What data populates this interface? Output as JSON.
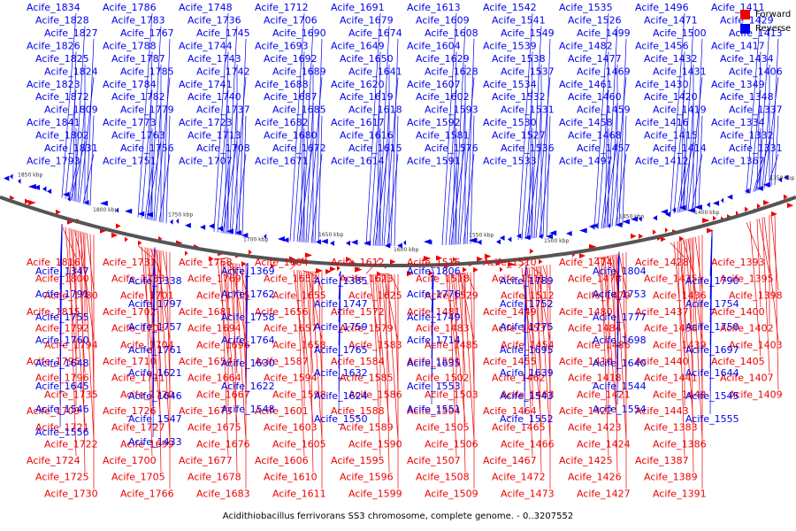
{
  "legend": [
    {
      "label": "Forward",
      "color": "#ee0000"
    },
    {
      "label": "Reverse",
      "color": "#0000ee"
    }
  ],
  "caption": "Acidithiobacillus ferrivorans SS3 chromosome, complete genome. - 0..3207552",
  "colors": {
    "forward": "#ee0000",
    "reverse": "#0000ee",
    "backbone": "#555555"
  },
  "ticks": [
    "1850 kbp",
    "1800 kbp",
    "1750 kbp",
    "1700 kbp",
    "1650 kbp",
    "1600 kbp",
    "1550 kbp",
    "1500 kbp",
    "1450 kbp",
    "1400 kbp",
    "1350 kbp"
  ],
  "reverse_labels": [
    "Acife_1834",
    "Acife_1828",
    "Acife_1827",
    "Acife_1826",
    "Acife_1825",
    "Acife_1824",
    "Acife_1823",
    "Acife_1872",
    "Acife_1809",
    "Acife_1841",
    "Acife_1802",
    "Acife_1831",
    "Acife_1793",
    "Acife_1786",
    "Acife_1783",
    "Acife_1767",
    "Acife_1788",
    "Acife_1787",
    "Acife_1785",
    "Acife_1784",
    "Acife_1782",
    "Acife_1779",
    "Acife_1773",
    "Acife_1763",
    "Acife_1756",
    "Acife_1751",
    "Acife_1748",
    "Acife_1736",
    "Acife_1745",
    "Acife_1744",
    "Acife_1743",
    "Acife_1742",
    "Acife_1741",
    "Acife_1740",
    "Acife_1737",
    "Acife_1723",
    "Acife_1713",
    "Acife_1708",
    "Acife_1707",
    "Acife_1712",
    "Acife_1706",
    "Acife_1690",
    "Acife_1693",
    "Acife_1692",
    "Acife_1689",
    "Acife_1688",
    "Acife_1687",
    "Acife_1685",
    "Acife_1682",
    "Acife_1680",
    "Acife_1672",
    "Acife_1671",
    "Acife_1691",
    "Acife_1679",
    "Acife_1674",
    "Acife_1649",
    "Acife_1650",
    "Acife_1641",
    "Acife_1620",
    "Acife_1619",
    "Acife_1618",
    "Acife_1617",
    "Acife_1616",
    "Acife_1615",
    "Acife_1614",
    "Acife_1613",
    "Acife_1609",
    "Acife_1608",
    "Acife_1604",
    "Acife_1629",
    "Acife_1628",
    "Acife_1607",
    "Acife_1602",
    "Acife_1593",
    "Acife_1592",
    "Acife_1581",
    "Acife_1576",
    "Acife_1591",
    "Acife_1542",
    "Acife_1541",
    "Acife_1549",
    "Acife_1539",
    "Acife_1538",
    "Acife_1537",
    "Acife_1534",
    "Acife_1532",
    "Acife_1531",
    "Acife_1530",
    "Acife_1527",
    "Acife_1536",
    "Acife_1533",
    "Acife_1535",
    "Acife_1526",
    "Acife_1499",
    "Acife_1482",
    "Acife_1477",
    "Acife_1469",
    "Acife_1461",
    "Acife_1460",
    "Acife_1459",
    "Acife_1458",
    "Acife_1468",
    "Acife_1457",
    "Acife_1497",
    "Acife_1496",
    "Acife_1471",
    "Acife_1500",
    "Acife_1456",
    "Acife_1432",
    "Acife_1431",
    "Acife_1430",
    "Acife_1420",
    "Acife_1419",
    "Acife_1416",
    "Acife_1415",
    "Acife_1414",
    "Acife_1412",
    "Acife_1411",
    "Acife_1429",
    "Acife_1413",
    "Acife_1417",
    "Acife_1434",
    "Acife_1406",
    "Acife_1349",
    "Acife_1348",
    "Acife_1337",
    "Acife_1334",
    "Acife_1332",
    "Acife_1331",
    "Acife_1367",
    "Acife_1347",
    "Acife_1338",
    "Acife_1369",
    "Acife_1385",
    "Acife_1806",
    "Acife_1789",
    "Acife_1804",
    "Acife_1790",
    "Acife_1791",
    "Acife_1797",
    "Acife_1762",
    "Acife_1747",
    "Acife_1776",
    "Acife_1752",
    "Acife_1753",
    "Acife_1754",
    "Acife_1755",
    "Acife_1757",
    "Acife_1758",
    "Acife_1759",
    "Acife_1749",
    "Acife_1775",
    "Acife_1777",
    "Acife_1750",
    "Acife_1760",
    "Acife_1761",
    "Acife_1764",
    "Acife_1765",
    "Acife_1714",
    "Acife_1695",
    "Acife_1698",
    "Acife_1697",
    "Acife_1648",
    "Acife_1621",
    "Acife_1630",
    "Acife_1632",
    "Acife_1635",
    "Acife_1639",
    "Acife_1640",
    "Acife_1644",
    "Acife_1645",
    "Acife_1646",
    "Acife_1622",
    "Acife_1624",
    "Acife_1553",
    "Acife_1543",
    "Acife_1544",
    "Acife_1545",
    "Acife_1546",
    "Acife_1547",
    "Acife_1548",
    "Acife_1550",
    "Acife_1551",
    "Acife_1552",
    "Acife_1554",
    "Acife_1555",
    "Acife_1556",
    "Acife_1433"
  ],
  "forward_labels": [
    "Acife_1816",
    "Acife_1800",
    "Acife_1780",
    "Acife_1815",
    "Acife_1792",
    "Acife_1794",
    "Acife_1795",
    "Acife_1796",
    "Acife_1735",
    "Acife_1709",
    "Acife_1721",
    "Acife_1722",
    "Acife_1724",
    "Acife_1725",
    "Acife_1730",
    "Acife_1731",
    "Acife_1733",
    "Acife_1701",
    "Acife_1702",
    "Acife_1703",
    "Acife_1704",
    "Acife_1710",
    "Acife_1711",
    "Acife_1720",
    "Acife_1726",
    "Acife_1727",
    "Acife_1699",
    "Acife_1700",
    "Acife_1705",
    "Acife_1766",
    "Acife_1768",
    "Acife_1769",
    "Acife_1715",
    "Acife_1681",
    "Acife_1694",
    "Acife_1696",
    "Acife_1654",
    "Acife_1664",
    "Acife_1667",
    "Acife_1673",
    "Acife_1675",
    "Acife_1676",
    "Acife_1677",
    "Acife_1678",
    "Acife_1683",
    "Acife_1684",
    "Acife_1653",
    "Acife_1655",
    "Acife_1656",
    "Acife_1657",
    "Acife_1658",
    "Acife_1587",
    "Acife_1594",
    "Acife_1598",
    "Acife_1601",
    "Acife_1603",
    "Acife_1605",
    "Acife_1606",
    "Acife_1610",
    "Acife_1611",
    "Acife_1612",
    "Acife_1623",
    "Acife_1625",
    "Acife_1572",
    "Acife_1579",
    "Acife_1583",
    "Acife_1584",
    "Acife_1585",
    "Acife_1586",
    "Acife_1588",
    "Acife_1589",
    "Acife_1590",
    "Acife_1595",
    "Acife_1596",
    "Acife_1599",
    "Acife_1516",
    "Acife_1518",
    "Acife_1529",
    "Acife_1481",
    "Acife_1483",
    "Acife_1485",
    "Acife_1501",
    "Acife_1502",
    "Acife_1503",
    "Acife_1504",
    "Acife_1505",
    "Acife_1506",
    "Acife_1507",
    "Acife_1508",
    "Acife_1509",
    "Acife_1510",
    "Acife_1511",
    "Acife_1512",
    "Acife_1449",
    "Acife_1453",
    "Acife_1454",
    "Acife_1455",
    "Acife_1462",
    "Acife_1463",
    "Acife_1464",
    "Acife_1465",
    "Acife_1466",
    "Acife_1467",
    "Acife_1472",
    "Acife_1473",
    "Acife_1474",
    "Acife_1478",
    "Acife_1479",
    "Acife_1480",
    "Acife_1484",
    "Acife_1486",
    "Acife_1410",
    "Acife_1418",
    "Acife_1421",
    "Acife_1422",
    "Acife_1423",
    "Acife_1424",
    "Acife_1425",
    "Acife_1426",
    "Acife_1427",
    "Acife_1428",
    "Acife_1435",
    "Acife_1436",
    "Acife_1437",
    "Acife_1438",
    "Acife_1439",
    "Acife_1440",
    "Acife_1441",
    "Acife_1442",
    "Acife_1443",
    "Acife_1383",
    "Acife_1386",
    "Acife_1387",
    "Acife_1389",
    "Acife_1391",
    "Acife_1393",
    "Acife_1395",
    "Acife_1398",
    "Acife_1400",
    "Acife_1402",
    "Acife_1403",
    "Acife_1405",
    "Acife_1407",
    "Acife_1409"
  ]
}
